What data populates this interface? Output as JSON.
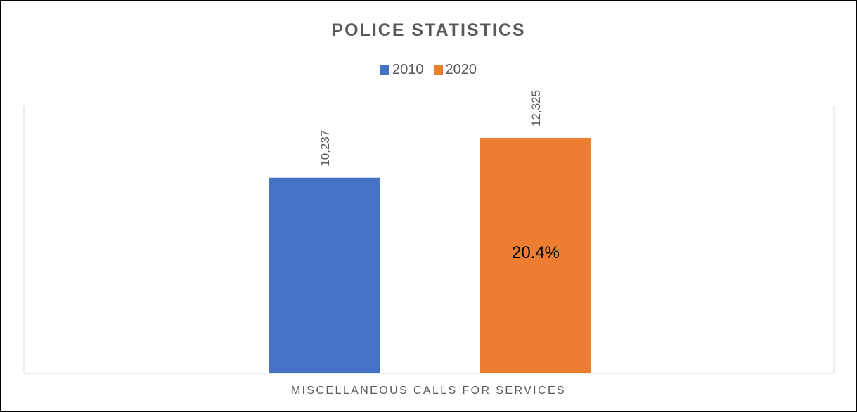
{
  "chart_data": {
    "type": "bar",
    "title": "POLICE STATISTICS",
    "categories": [
      "MISCELLANEOUS CALLS FOR SERVICES"
    ],
    "series": [
      {
        "name": "2010",
        "values": [
          10237
        ],
        "labels": [
          "10,237"
        ],
        "color": "#4472C4"
      },
      {
        "name": "2020",
        "values": [
          12325
        ],
        "labels": [
          "12,325"
        ],
        "color": "#ED7D31"
      }
    ],
    "annotations": [
      {
        "series": "2020",
        "text": "20.4%"
      }
    ],
    "ylim": [
      0,
      14000
    ],
    "legend_position": "top",
    "grid": false,
    "data_label_orientation": "vertical"
  }
}
